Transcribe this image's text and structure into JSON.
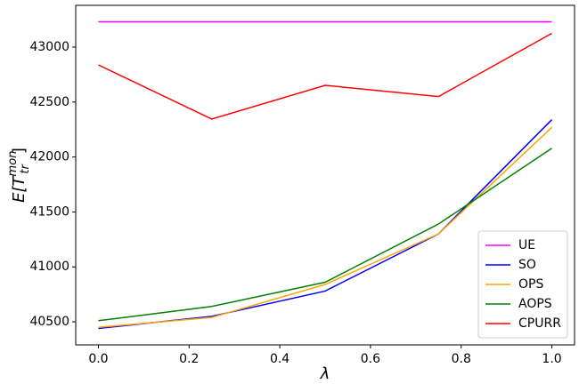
{
  "chart_data": {
    "type": "line",
    "x": [
      0,
      0.25,
      0.5,
      0.75,
      1.0
    ],
    "series": [
      {
        "name": "UE",
        "color": "#ff00ff",
        "values": [
          43230,
          43230,
          43230,
          43230,
          43230
        ]
      },
      {
        "name": "SO",
        "color": "#0000ff",
        "values": [
          40440,
          40550,
          40780,
          41300,
          42340
        ]
      },
      {
        "name": "OPS",
        "color": "#ffa500",
        "values": [
          40450,
          40540,
          40840,
          41300,
          42270
        ]
      },
      {
        "name": "AOPS",
        "color": "#008000",
        "values": [
          40510,
          40640,
          40860,
          41390,
          42080
        ]
      },
      {
        "name": "CPURR",
        "color": "#ff0000",
        "values": [
          42838,
          42345,
          42652,
          42550,
          43125
        ]
      }
    ],
    "xlabel": "λ",
    "ylabel": {
      "base": "E[T",
      "sub": "tr",
      "sup": "mon",
      "close": "]"
    },
    "xlim": [
      -0.05,
      1.05
    ],
    "ylim": [
      40290,
      43380
    ],
    "xticks": [
      {
        "value": 0,
        "label": "0.0"
      },
      0.2,
      0.4,
      0.6,
      0.8,
      {
        "value": 1,
        "label": "1.0"
      }
    ],
    "yticks": [
      40500,
      41000,
      41500,
      42000,
      42500,
      43000
    ],
    "legend": "lower right"
  }
}
